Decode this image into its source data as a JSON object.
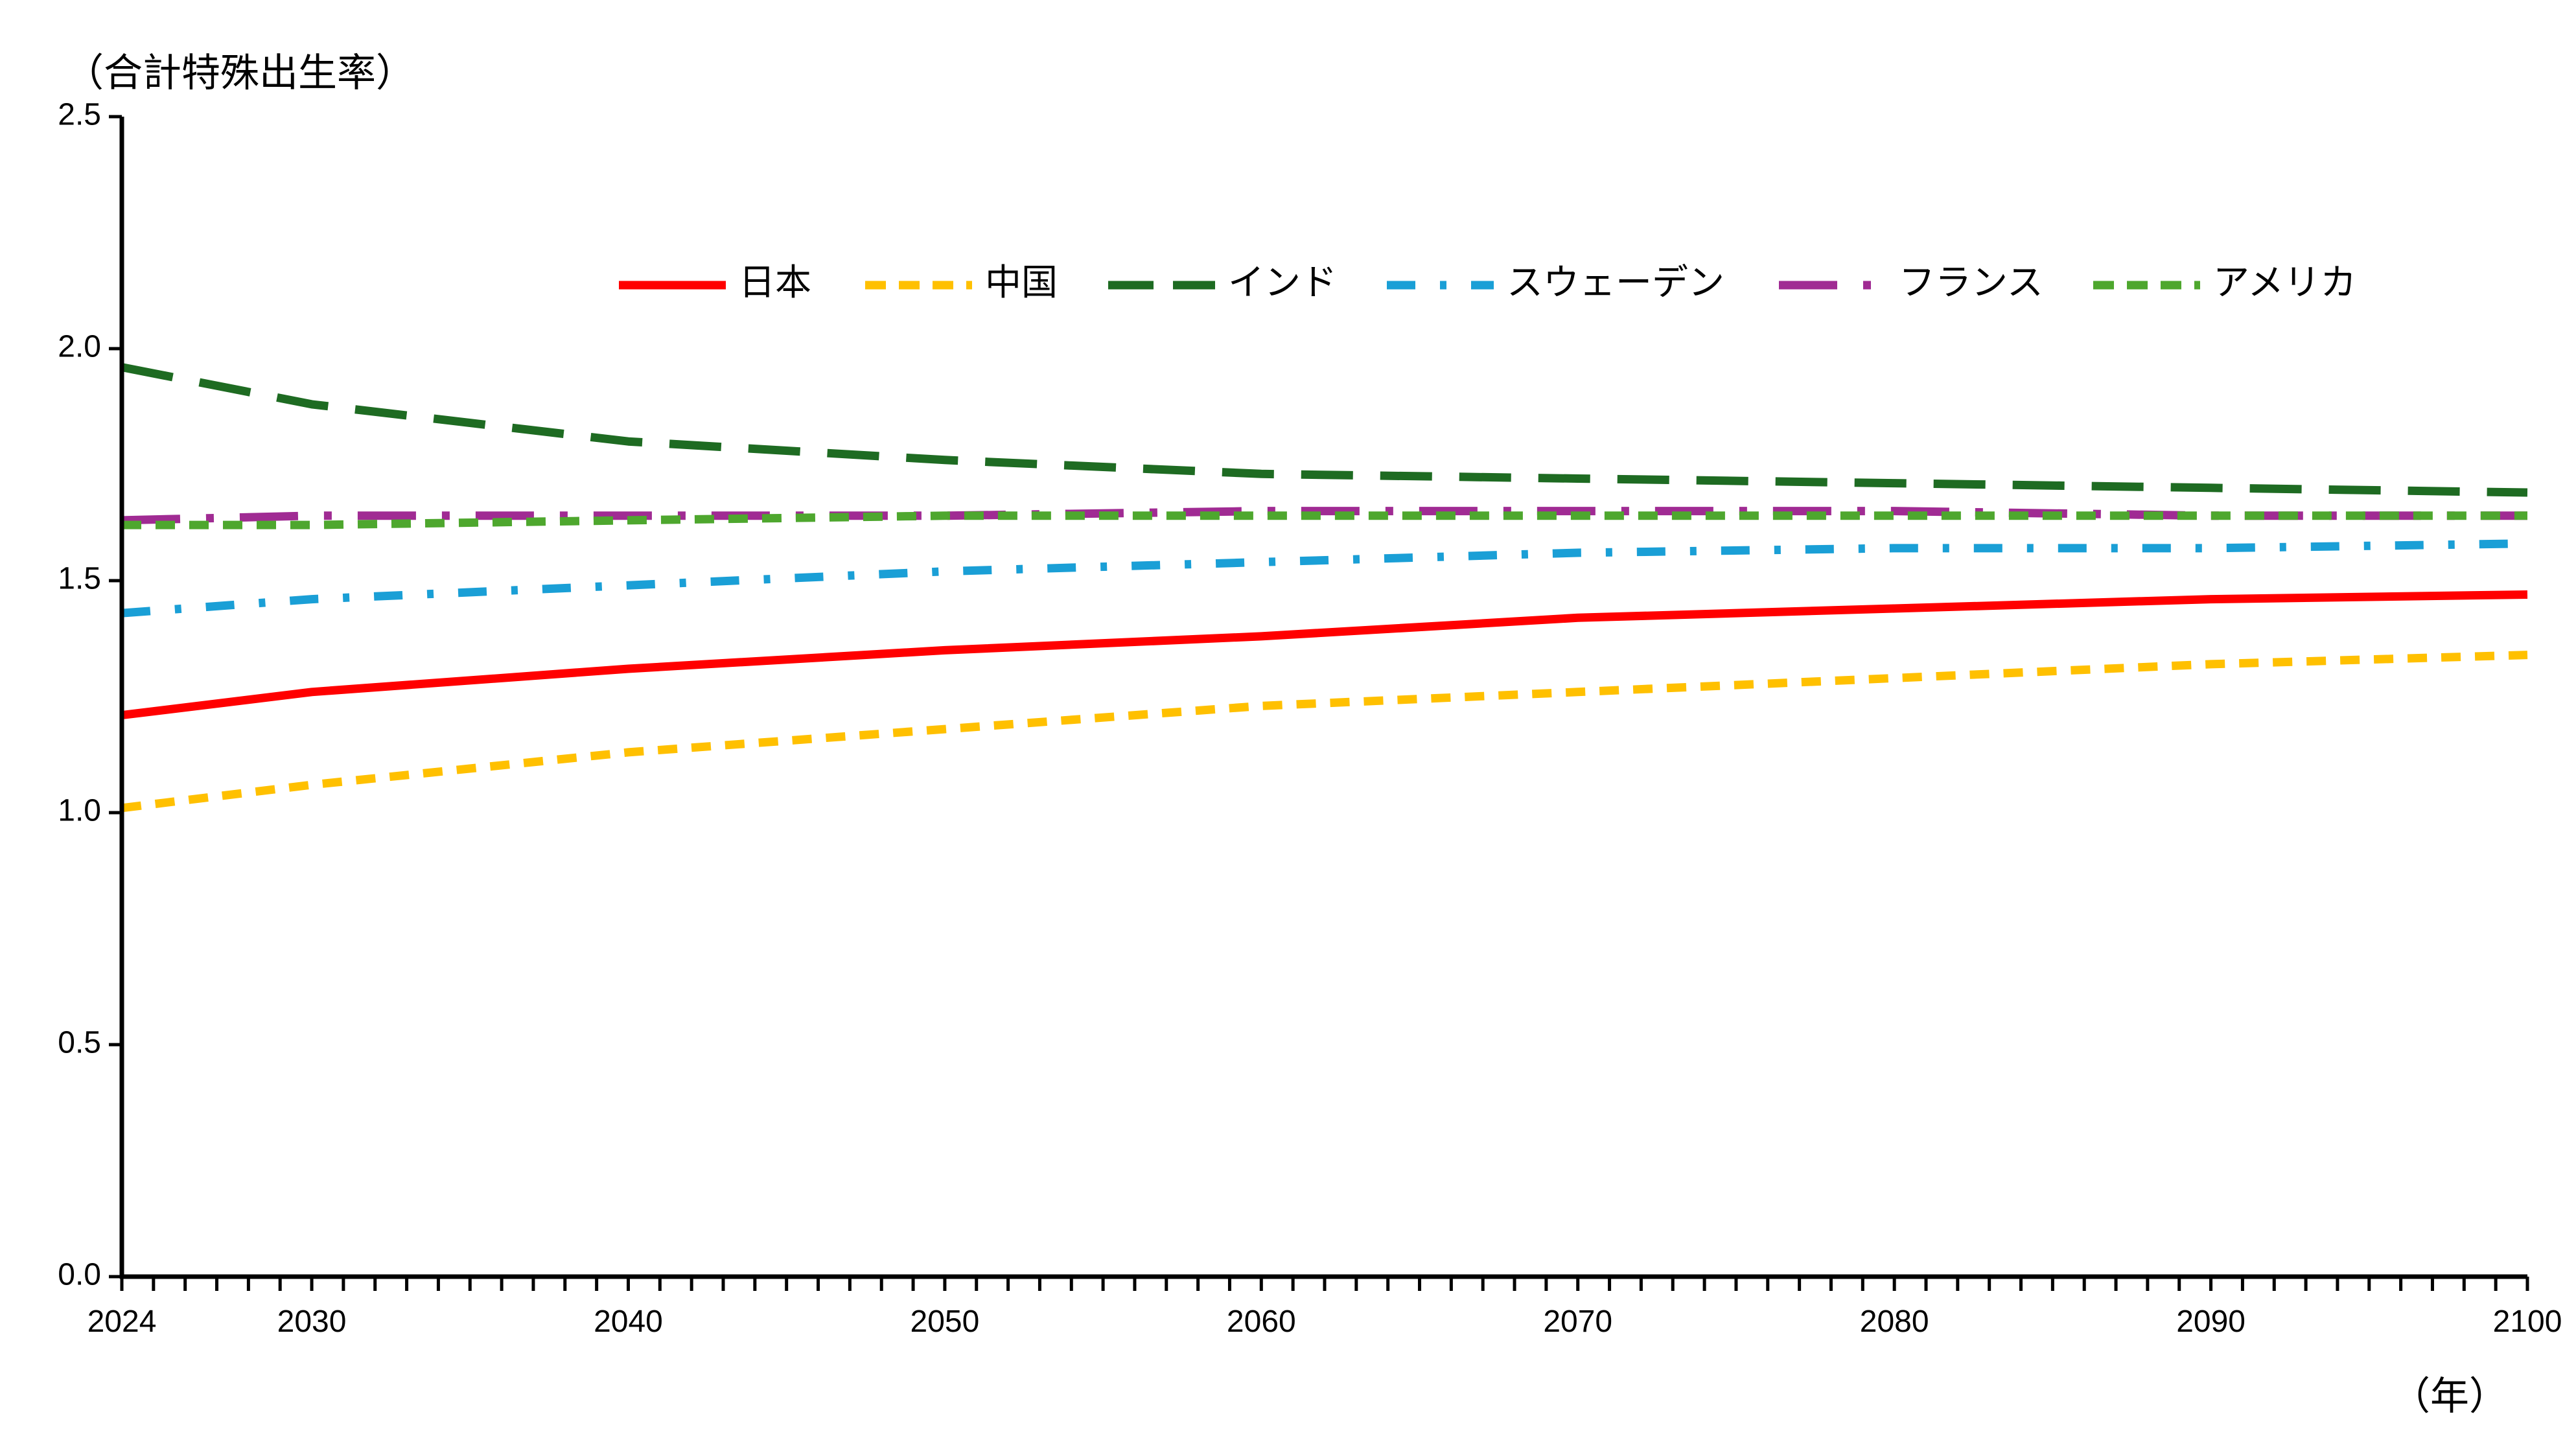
{
  "chart_data": {
    "type": "line",
    "title": "",
    "ylabel": "（合計特殊出生率）",
    "xlabel": "（年）",
    "ylim": [
      0,
      2.5
    ],
    "xlim": [
      2024,
      2100
    ],
    "yticks": [
      0.0,
      0.5,
      1.0,
      1.5,
      2.0,
      2.5
    ],
    "ytick_labels": [
      "0.0",
      "0.5",
      "1.0",
      "1.5",
      "2.0",
      "2.5"
    ],
    "xticks": [
      2024,
      2030,
      2040,
      2050,
      2060,
      2070,
      2080,
      2090,
      2100
    ],
    "xtick_labels": [
      "2024",
      "2030",
      "2040",
      "2050",
      "2060",
      "2070",
      "2080",
      "2090",
      "2100"
    ],
    "grid": false,
    "legend_position": "top",
    "x": [
      2024,
      2030,
      2040,
      2050,
      2060,
      2070,
      2080,
      2090,
      2100
    ],
    "series": [
      {
        "name": "日本",
        "color": "#ff0000",
        "style": "solid",
        "values": [
          1.21,
          1.26,
          1.31,
          1.35,
          1.38,
          1.42,
          1.44,
          1.46,
          1.47
        ]
      },
      {
        "name": "中国",
        "color": "#ffc000",
        "style": "dash",
        "values": [
          1.01,
          1.06,
          1.13,
          1.18,
          1.23,
          1.26,
          1.29,
          1.32,
          1.34
        ]
      },
      {
        "name": "インド",
        "color": "#1e6b22",
        "style": "longdash",
        "values": [
          1.96,
          1.88,
          1.8,
          1.76,
          1.73,
          1.72,
          1.71,
          1.7,
          1.69
        ]
      },
      {
        "name": "スウェーデン",
        "color": "#1a9fd6",
        "style": "dashdot",
        "values": [
          1.43,
          1.46,
          1.49,
          1.52,
          1.54,
          1.56,
          1.57,
          1.57,
          1.58
        ]
      },
      {
        "name": "フランス",
        "color": "#a02b93",
        "style": "longdashdot",
        "values": [
          1.63,
          1.64,
          1.64,
          1.64,
          1.65,
          1.65,
          1.65,
          1.64,
          1.64
        ]
      },
      {
        "name": "アメリカ",
        "color": "#4ea72e",
        "style": "dash",
        "values": [
          1.62,
          1.62,
          1.63,
          1.64,
          1.64,
          1.64,
          1.64,
          1.64,
          1.64
        ]
      }
    ]
  }
}
